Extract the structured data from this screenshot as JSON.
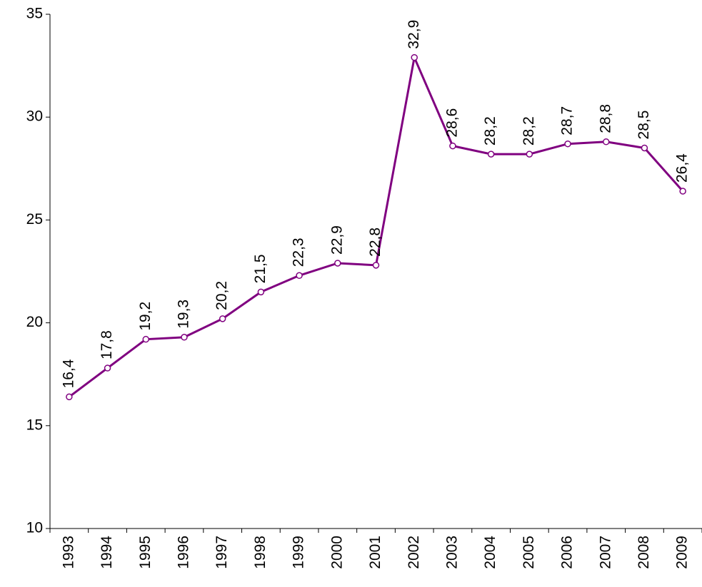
{
  "chart_data": {
    "type": "line",
    "categories": [
      "1993",
      "1994",
      "1995",
      "1996",
      "1997",
      "1998",
      "1999",
      "2000",
      "2001",
      "2002",
      "2003",
      "2004",
      "2005",
      "2006",
      "2007",
      "2008",
      "2009"
    ],
    "values": [
      16.4,
      17.8,
      19.2,
      19.3,
      20.2,
      21.5,
      22.3,
      22.9,
      22.8,
      32.9,
      28.6,
      28.2,
      28.2,
      28.7,
      28.8,
      28.5,
      26.4
    ],
    "value_labels": [
      "16,4",
      "17,8",
      "19,2",
      "19,3",
      "20,2",
      "21,5",
      "22,3",
      "22,9",
      "22,8",
      "32,9",
      "28,6",
      "28,2",
      "28,2",
      "28,7",
      "28,8",
      "28,5",
      "26,4"
    ],
    "color": "#800080",
    "ylim": [
      10,
      35
    ],
    "yticks": [
      10,
      15,
      20,
      25,
      30,
      35
    ]
  }
}
